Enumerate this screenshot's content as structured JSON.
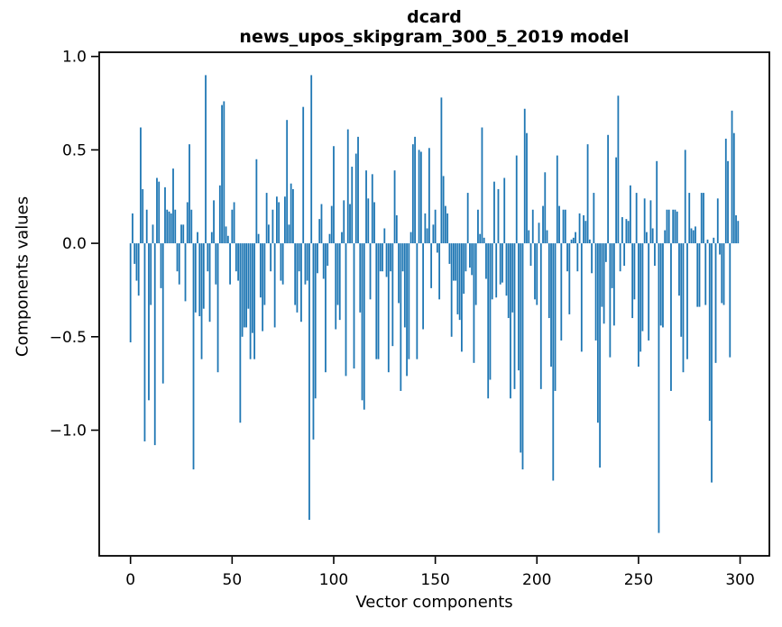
{
  "figure": {
    "title_line1": "dcard",
    "title_line2": "news_upos_skipgram_300_5_2019 model"
  },
  "chart_data": {
    "type": "bar",
    "title": "dcard\nnews_upos_skipgram_300_5_2019 model",
    "xlabel": "Vector components",
    "ylabel": "Components values",
    "x_ticks": [
      0,
      50,
      100,
      150,
      200,
      250,
      300
    ],
    "y_ticks": [
      1.0,
      0.5,
      0.0,
      -0.5,
      -1.0
    ],
    "y_tick_labels": [
      "1.0",
      "0.5",
      "0.0",
      "−0.5",
      "−1.0"
    ],
    "xlim": [
      -15.4,
      314.4
    ],
    "ylim": [
      -1.6725,
      1.0225
    ],
    "grid": false,
    "legend": null,
    "background": "#ffffff",
    "bar_color": "#1f77b4",
    "spine_color": "#000000",
    "n_bars": 300,
    "x_start": 0,
    "values": [
      -0.53,
      0.16,
      -0.11,
      -0.2,
      -0.28,
      0.62,
      0.29,
      -1.06,
      0.18,
      -0.84,
      -0.33,
      0.1,
      -1.08,
      0.35,
      0.33,
      -0.24,
      -0.75,
      0.3,
      0.18,
      0.17,
      0.16,
      0.4,
      0.18,
      -0.15,
      -0.22,
      0.1,
      0.1,
      -0.31,
      0.22,
      0.53,
      0.18,
      -1.21,
      -0.37,
      0.06,
      -0.39,
      -0.62,
      -0.35,
      0.9,
      -0.15,
      -0.42,
      0.06,
      0.23,
      -0.22,
      -0.69,
      0.31,
      0.74,
      0.76,
      0.09,
      0.04,
      -0.22,
      0.18,
      0.22,
      -0.15,
      -0.2,
      -0.96,
      -0.5,
      -0.45,
      -0.45,
      -0.35,
      -0.62,
      -0.48,
      -0.62,
      0.45,
      0.05,
      -0.29,
      -0.47,
      -0.33,
      0.27,
      0.1,
      -0.15,
      0.18,
      -0.45,
      0.25,
      0.22,
      -0.2,
      -0.22,
      0.25,
      0.66,
      0.1,
      0.32,
      0.29,
      -0.33,
      -0.37,
      -0.15,
      -0.42,
      0.73,
      -0.22,
      -0.2,
      -1.48,
      0.9,
      -1.05,
      -0.83,
      -0.16,
      0.13,
      0.21,
      -0.19,
      -0.69,
      -0.12,
      0.05,
      0.2,
      0.52,
      -0.46,
      -0.33,
      -0.41,
      0.06,
      0.23,
      -0.71,
      0.61,
      0.21,
      0.41,
      -0.67,
      0.48,
      0.57,
      -0.37,
      -0.84,
      -0.89,
      0.39,
      0.24,
      -0.3,
      0.37,
      0.22,
      -0.62,
      -0.62,
      -0.15,
      -0.15,
      0.08,
      -0.18,
      -0.69,
      -0.15,
      -0.55,
      0.39,
      0.15,
      -0.32,
      -0.79,
      -0.15,
      -0.45,
      -0.71,
      -0.62,
      0.06,
      0.53,
      0.57,
      -0.62,
      0.5,
      0.49,
      -0.46,
      0.16,
      0.08,
      0.51,
      -0.24,
      0.1,
      0.18,
      -0.05,
      -0.3,
      0.78,
      0.36,
      0.2,
      0.16,
      -0.11,
      -0.5,
      -0.2,
      -0.2,
      -0.38,
      -0.41,
      -0.58,
      -0.27,
      -0.15,
      0.27,
      -0.13,
      -0.17,
      -0.64,
      -0.33,
      0.18,
      0.05,
      0.62,
      0.03,
      -0.19,
      -0.83,
      -0.73,
      -0.3,
      0.33,
      -0.29,
      0.29,
      -0.22,
      -0.21,
      0.35,
      -0.28,
      -0.4,
      -0.83,
      -0.37,
      -0.78,
      0.47,
      -0.68,
      -1.12,
      -1.21,
      0.72,
      0.59,
      0.07,
      -0.12,
      0.18,
      -0.3,
      -0.33,
      0.11,
      -0.78,
      0.2,
      0.38,
      0.07,
      -0.4,
      -0.66,
      -1.27,
      -0.79,
      0.47,
      0.2,
      -0.52,
      0.18,
      0.18,
      -0.15,
      -0.38,
      0.02,
      0.03,
      0.06,
      -0.15,
      0.16,
      -0.58,
      0.15,
      0.12,
      0.53,
      0.02,
      -0.16,
      0.27,
      -0.52,
      -0.96,
      -1.2,
      -0.34,
      -0.43,
      -0.1,
      0.58,
      -0.61,
      -0.24,
      -0.44,
      0.46,
      0.79,
      -0.15,
      0.14,
      -0.12,
      0.13,
      0.12,
      0.31,
      -0.4,
      -0.3,
      0.27,
      -0.66,
      -0.58,
      -0.47,
      0.24,
      0.06,
      -0.52,
      0.23,
      0.08,
      -0.12,
      0.44,
      -1.55,
      -0.44,
      -0.45,
      0.07,
      0.18,
      0.18,
      -0.79,
      0.18,
      0.18,
      0.17,
      -0.28,
      -0.5,
      -0.69,
      0.5,
      -0.62,
      0.27,
      0.08,
      0.07,
      0.09,
      -0.34,
      -0.34,
      0.27,
      0.27,
      -0.33,
      0.02,
      -0.95,
      -1.28,
      0.03,
      -0.64,
      0.24,
      -0.06,
      -0.32,
      -0.33,
      0.56,
      0.44,
      -0.61,
      0.71,
      0.59,
      0.15,
      0.12
    ]
  }
}
